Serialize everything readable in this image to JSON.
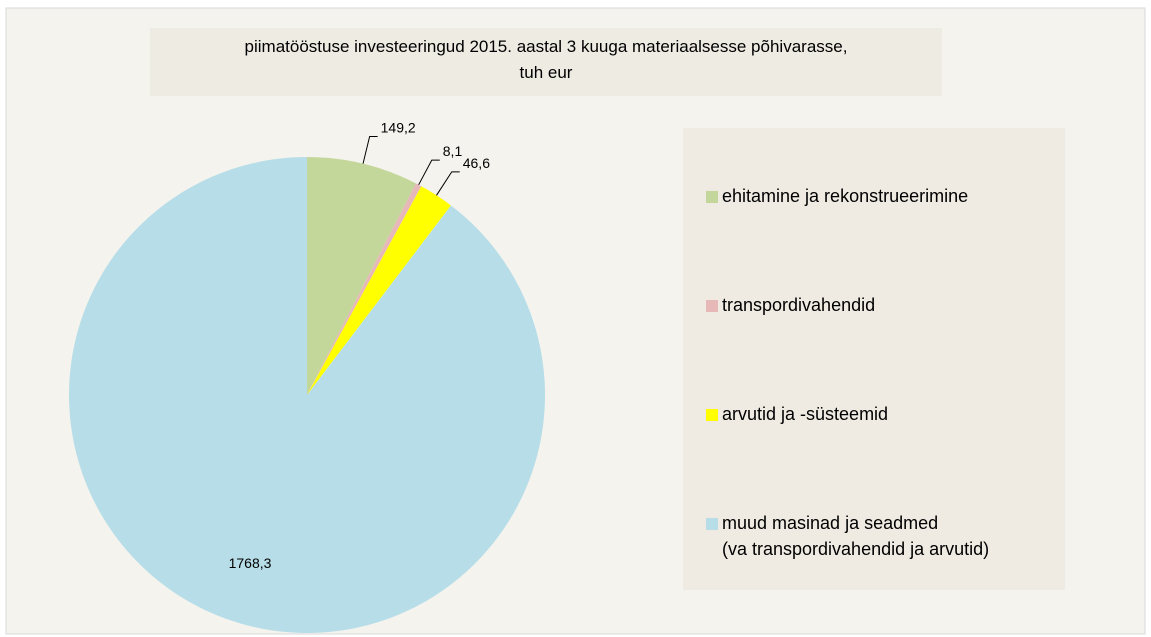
{
  "chart_data": {
    "type": "pie",
    "title": "piimatööstuse investeeringud 2015. aastal 3 kuuga materiaalsesse põhivarasse,\ntuh eur",
    "categories": [
      "ehitamine ja rekonstrueerimine",
      "transpordivahendid",
      "arvutid ja -süsteemid",
      "muud masinad ja seadmed\n(va transpordivahendid ja arvutid)"
    ],
    "values": [
      149.2,
      8.1,
      46.6,
      1768.3
    ],
    "value_labels": [
      "149,2",
      "8,1",
      "46,6",
      "1768,3"
    ],
    "colors": [
      "#c4d79b",
      "#e6b9b8",
      "#ffff00",
      "#b7dee8"
    ],
    "legend": "right"
  }
}
